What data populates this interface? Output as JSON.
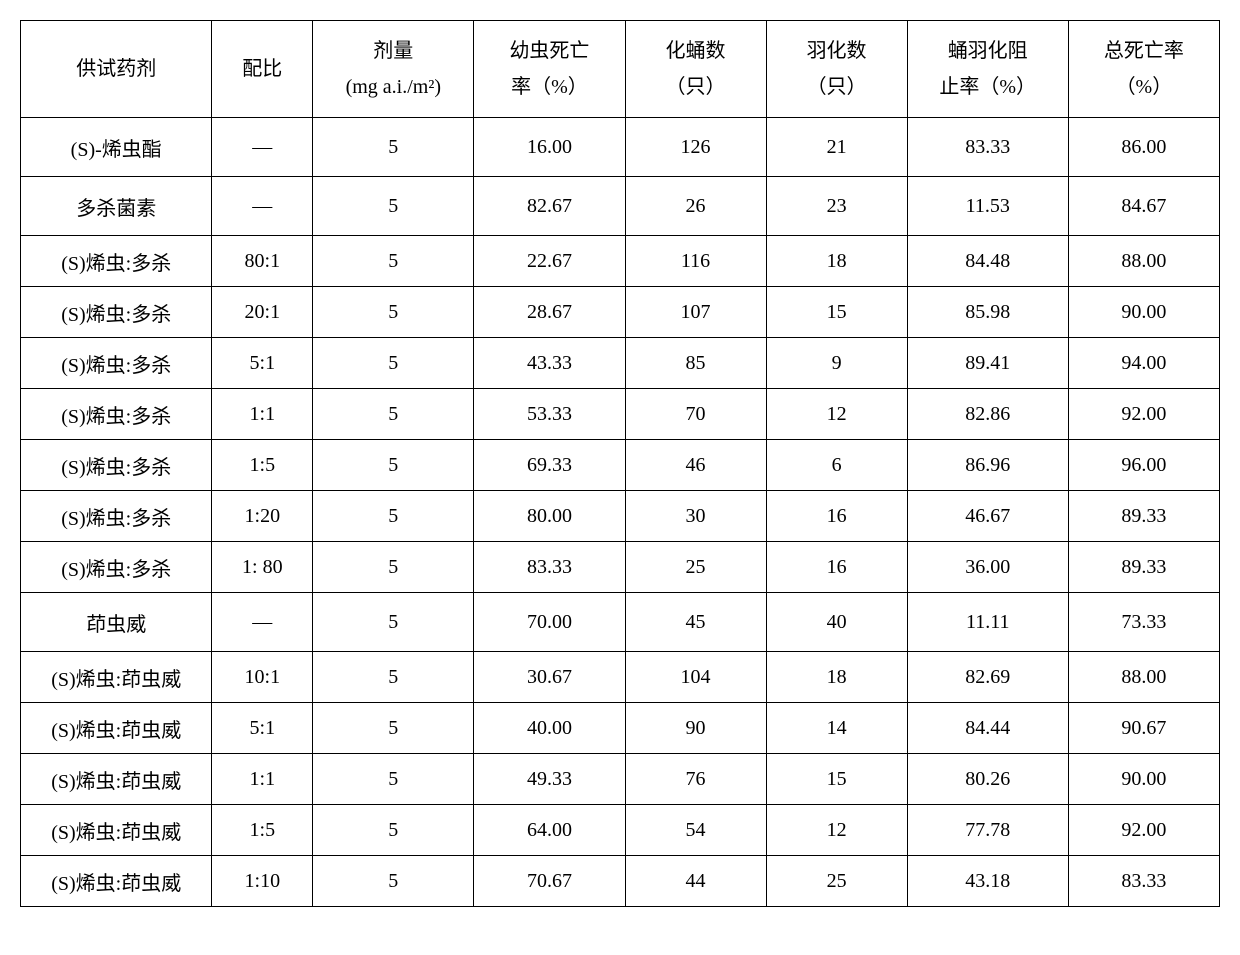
{
  "table": {
    "columns": [
      {
        "line1": "供试药剂",
        "line2": ""
      },
      {
        "line1": "配比",
        "line2": ""
      },
      {
        "line1": "剂量",
        "line2": "(mg a.i./m²)"
      },
      {
        "line1": "幼虫死亡",
        "line2": "率（%）"
      },
      {
        "line1": "化蛹数",
        "line2": "（只）"
      },
      {
        "line1": "羽化数",
        "line2": "（只）"
      },
      {
        "line1": "蛹羽化阻",
        "line2": "止率（%）"
      },
      {
        "line1": "总死亡率",
        "line2": "（%）"
      }
    ],
    "rows": [
      {
        "tall": true,
        "cells": [
          "(S)-烯虫酯",
          "—",
          "5",
          "16.00",
          "126",
          "21",
          "83.33",
          "86.00"
        ]
      },
      {
        "tall": true,
        "cells": [
          "多杀菌素",
          "—",
          "5",
          "82.67",
          "26",
          "23",
          "11.53",
          "84.67"
        ]
      },
      {
        "tall": false,
        "cells": [
          "(S)烯虫:多杀",
          "80:1",
          "5",
          "22.67",
          "116",
          "18",
          "84.48",
          "88.00"
        ]
      },
      {
        "tall": false,
        "cells": [
          "(S)烯虫:多杀",
          "20:1",
          "5",
          "28.67",
          "107",
          "15",
          "85.98",
          "90.00"
        ]
      },
      {
        "tall": false,
        "cells": [
          "(S)烯虫:多杀",
          "5:1",
          "5",
          "43.33",
          "85",
          "9",
          "89.41",
          "94.00"
        ]
      },
      {
        "tall": false,
        "cells": [
          "(S)烯虫:多杀",
          "1:1",
          "5",
          "53.33",
          "70",
          "12",
          "82.86",
          "92.00"
        ]
      },
      {
        "tall": false,
        "cells": [
          "(S)烯虫:多杀",
          "1:5",
          "5",
          "69.33",
          "46",
          "6",
          "86.96",
          "96.00"
        ]
      },
      {
        "tall": false,
        "cells": [
          "(S)烯虫:多杀",
          "1:20",
          "5",
          "80.00",
          "30",
          "16",
          "46.67",
          "89.33"
        ]
      },
      {
        "tall": false,
        "cells": [
          "(S)烯虫:多杀",
          "1: 80",
          "5",
          "83.33",
          "25",
          "16",
          "36.00",
          "89.33"
        ]
      },
      {
        "tall": true,
        "cells": [
          "茚虫威",
          "—",
          "5",
          "70.00",
          "45",
          "40",
          "11.11",
          "73.33"
        ]
      },
      {
        "tall": false,
        "cells": [
          "(S)烯虫:茚虫威",
          "10:1",
          "5",
          "30.67",
          "104",
          "18",
          "82.69",
          "88.00"
        ]
      },
      {
        "tall": false,
        "cells": [
          "(S)烯虫:茚虫威",
          "5:1",
          "5",
          "40.00",
          "90",
          "14",
          "84.44",
          "90.67"
        ]
      },
      {
        "tall": false,
        "cells": [
          "(S)烯虫:茚虫威",
          "1:1",
          "5",
          "49.33",
          "76",
          "15",
          "80.26",
          "90.00"
        ]
      },
      {
        "tall": false,
        "cells": [
          "(S)烯虫:茚虫威",
          "1:5",
          "5",
          "64.00",
          "54",
          "12",
          "77.78",
          "92.00"
        ]
      },
      {
        "tall": false,
        "cells": [
          "(S)烯虫:茚虫威",
          "1:10",
          "5",
          "70.67",
          "44",
          "25",
          "43.18",
          "83.33"
        ]
      }
    ]
  }
}
